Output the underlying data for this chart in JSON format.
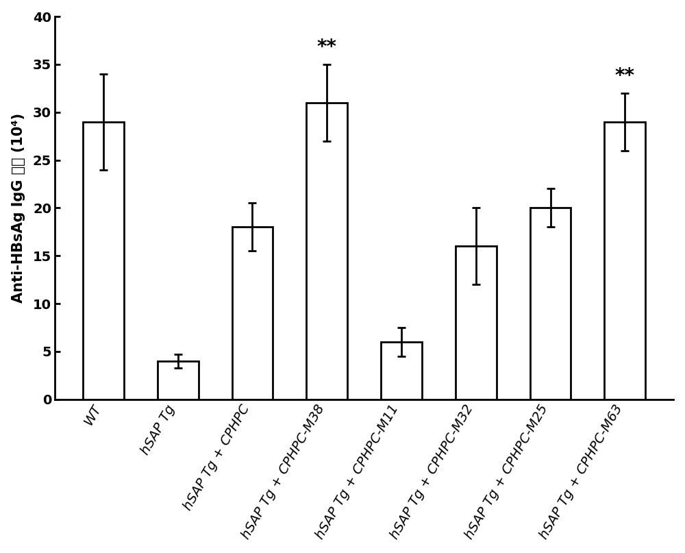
{
  "categories": [
    "WT",
    "hSAP Tg",
    "hSAP Tg + CPHPC",
    "hSAP Tg + CPHPC-M38",
    "hSAP Tg + CPHPC-M11",
    "hSAP Tg + CPHPC-M32",
    "hSAP Tg + CPHPC-M25",
    "hSAP Tg + CPHPC-M63"
  ],
  "values": [
    29,
    4,
    18,
    31,
    6,
    16,
    20,
    29
  ],
  "errors": [
    5.0,
    0.7,
    2.5,
    4.0,
    1.5,
    4.0,
    2.0,
    3.0
  ],
  "sig_labels": [
    "",
    "",
    "",
    "**",
    "",
    "",
    "",
    "**"
  ],
  "bar_color": "#ffffff",
  "bar_edgecolor": "#000000",
  "ylabel_part1": "Anti-HBsAg IgG ",
  "ylabel_part2": "滖度",
  "ylabel_part3": " (10⁴)",
  "ylim": [
    0,
    40
  ],
  "yticks": [
    0,
    5,
    10,
    15,
    20,
    25,
    30,
    35,
    40
  ],
  "bar_width": 0.55,
  "linewidth": 2.0,
  "capsize": 4,
  "sig_fontsize": 20,
  "ylabel_fontsize": 15,
  "tick_fontsize": 14,
  "xlabel_rotation": 60,
  "background_color": "#ffffff"
}
